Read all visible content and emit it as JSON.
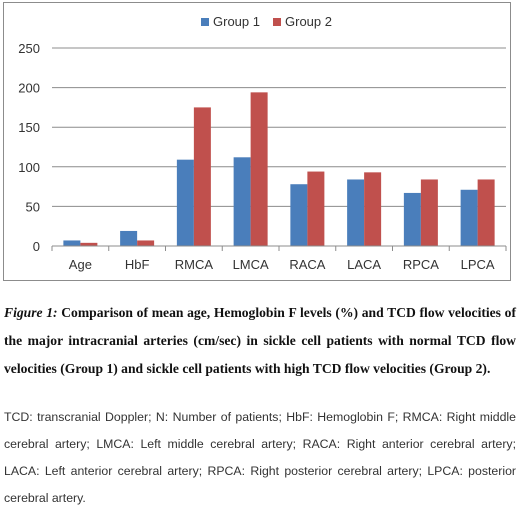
{
  "chart_data": {
    "type": "bar",
    "categories": [
      "Age",
      "HbF",
      "RMCA",
      "LMCA",
      "RACA",
      "LACA",
      "RPCA",
      "LPCA"
    ],
    "series": [
      {
        "name": "Group 1",
        "color": "#4a7ebb",
        "values": [
          7,
          19,
          109,
          112,
          78,
          84,
          67,
          71
        ]
      },
      {
        "name": "Group 2",
        "color": "#c0504d",
        "values": [
          4,
          7,
          175,
          194,
          94,
          93,
          84,
          84
        ]
      }
    ],
    "ylim": [
      0,
      250
    ],
    "yticks": [
      0,
      50,
      100,
      150,
      200,
      250
    ],
    "grid": true,
    "legend_position": "top"
  },
  "caption": {
    "figure_label": "Figure 1:",
    "text": " Comparison of mean age, Hemoglobin F levels (%) and TCD flow velocities of the major intracranial arteries (cm/sec) in sickle cell patients with normal TCD flow velocities (Group 1) and sickle cell patients with high TCD flow velocities (Group 2)."
  },
  "abbreviations": "TCD: transcranial Doppler; N: Number of patients; HbF: Hemoglobin F; RMCA: Right middle cerebral artery; LMCA: Left middle cerebral artery; RACA: Right anterior cerebral artery; LACA: Left anterior cerebral artery; RPCA: Right posterior cerebral artery; LPCA: posterior cerebral artery."
}
